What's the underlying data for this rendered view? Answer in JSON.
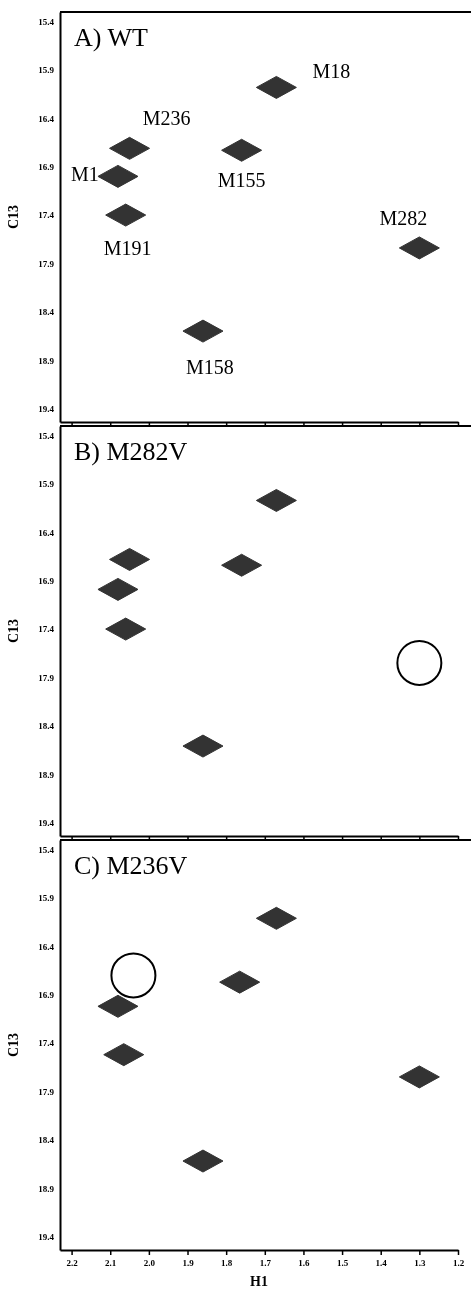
{
  "chart_data": [
    {
      "type": "scatter",
      "title": "A) WT",
      "ylabel": "C13",
      "xlim": [
        2.23,
        1.2
      ],
      "ylim": [
        19.54,
        15.3
      ],
      "xticks": [
        2.2,
        2.1,
        2,
        1.9,
        1.8,
        1.7,
        1.6,
        1.5,
        1.4,
        1.3,
        1.2
      ],
      "yticks": [
        15.4,
        15.9,
        16.4,
        16.9,
        17.4,
        17.9,
        18.4,
        18.9,
        19.4
      ],
      "tick_labels": "y",
      "series": [
        {
          "marker": "diamond",
          "color": "#333333",
          "x": [
            1.67,
            2.05,
            2.08,
            1.76,
            2.06,
            1.3,
            1.86
          ],
          "values": [
            16.08,
            16.71,
            17.0,
            16.73,
            17.4,
            17.74,
            18.6
          ]
        }
      ],
      "annotations": [
        {
          "text": "M18",
          "x": 1.67,
          "y": 16.08
        },
        {
          "text": "M236",
          "x": 2.05,
          "y": 16.71
        },
        {
          "text": "M1",
          "x": 2.08,
          "y": 17.0
        },
        {
          "text": "M155",
          "x": 1.76,
          "y": 16.73
        },
        {
          "text": "M191",
          "x": 2.06,
          "y": 17.4
        },
        {
          "text": "M282",
          "x": 1.3,
          "y": 17.74
        },
        {
          "text": "M158",
          "x": 1.86,
          "y": 18.6
        }
      ]
    },
    {
      "type": "scatter",
      "title": "B) M282V",
      "ylabel": "C13",
      "xlim": [
        2.23,
        1.2
      ],
      "ylim": [
        19.54,
        15.3
      ],
      "xticks": [
        2.2,
        2.1,
        2,
        1.9,
        1.8,
        1.7,
        1.6,
        1.5,
        1.4,
        1.3,
        1.2
      ],
      "yticks": [
        15.4,
        15.9,
        16.4,
        16.9,
        17.4,
        17.9,
        18.4,
        18.9,
        19.4
      ],
      "tick_labels": "y",
      "series": [
        {
          "marker": "diamond",
          "color": "#333333",
          "x": [
            1.67,
            2.05,
            2.08,
            1.76,
            2.06,
            1.86
          ],
          "values": [
            16.07,
            16.68,
            16.99,
            16.74,
            17.4,
            18.61
          ]
        },
        {
          "marker": "circle",
          "color": "#000000",
          "x": [
            1.3
          ],
          "values": [
            17.75
          ]
        }
      ]
    },
    {
      "type": "scatter",
      "title": "C) M236V",
      "xlabel": "H1",
      "ylabel": "C13",
      "xlim": [
        2.23,
        1.2
      ],
      "ylim": [
        19.54,
        15.3
      ],
      "xticks": [
        2.2,
        2.1,
        {
          "value": 2,
          "label": "2.0"
        },
        1.9,
        1.8,
        1.7,
        1.6,
        1.5,
        1.4,
        1.3,
        1.2
      ],
      "yticks": [
        15.4,
        15.9,
        16.4,
        16.9,
        17.4,
        17.9,
        18.4,
        18.9,
        19.4
      ],
      "series": [
        {
          "marker": "diamond",
          "color": "#333333",
          "x": [
            1.67,
            2.08,
            1.765,
            2.065,
            1.3,
            1.86
          ],
          "values": [
            16.11,
            17.02,
            16.77,
            17.52,
            17.75,
            18.62
          ]
        },
        {
          "marker": "circle",
          "color": "#000000",
          "x": [
            2.04
          ],
          "values": [
            16.7
          ]
        }
      ]
    }
  ]
}
